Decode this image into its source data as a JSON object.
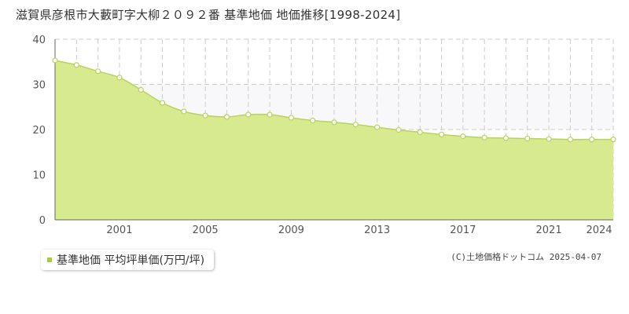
{
  "title": "滋賀県彦根市大藪町字大柳２０９２番 基準地価 地価推移[1998-2024]",
  "legend_label": "基準地価 平均坪単価(万円/坪)",
  "copyright": "(C)土地価格ドットコム 2025-04-07",
  "colors": {
    "fill": "#d8ea8f",
    "line": "#b9d35a",
    "marker_stroke": "#b9d35a",
    "marker_fill": "#ffffff",
    "legend_swatch": "#a8cc3c",
    "grid": "#cccccc",
    "band": "#f8f8fa",
    "axis_text": "#555555"
  },
  "chart_data": {
    "type": "area",
    "x": [
      1998,
      1999,
      2000,
      2001,
      2002,
      2003,
      2004,
      2005,
      2006,
      2007,
      2008,
      2009,
      2010,
      2011,
      2012,
      2013,
      2014,
      2015,
      2016,
      2017,
      2018,
      2019,
      2020,
      2021,
      2022,
      2023,
      2024
    ],
    "series": [
      {
        "name": "基準地価 平均坪単価(万円/坪)",
        "values": [
          35.3,
          34.3,
          32.9,
          31.5,
          28.8,
          25.9,
          24.0,
          23.1,
          22.8,
          23.3,
          23.3,
          22.6,
          22.0,
          21.6,
          21.1,
          20.5,
          19.9,
          19.4,
          18.9,
          18.5,
          18.2,
          18.1,
          18.0,
          17.9,
          17.8,
          17.8,
          17.8
        ]
      }
    ],
    "x_tick_labels": [
      "2001",
      "2005",
      "2009",
      "2013",
      "2017",
      "2021",
      "2024"
    ],
    "y_ticks": [
      0,
      10,
      20,
      30,
      40
    ],
    "xlim": [
      1998,
      2024
    ],
    "ylim": [
      0,
      40
    ],
    "grid": true,
    "legend_position": "bottom-left"
  }
}
